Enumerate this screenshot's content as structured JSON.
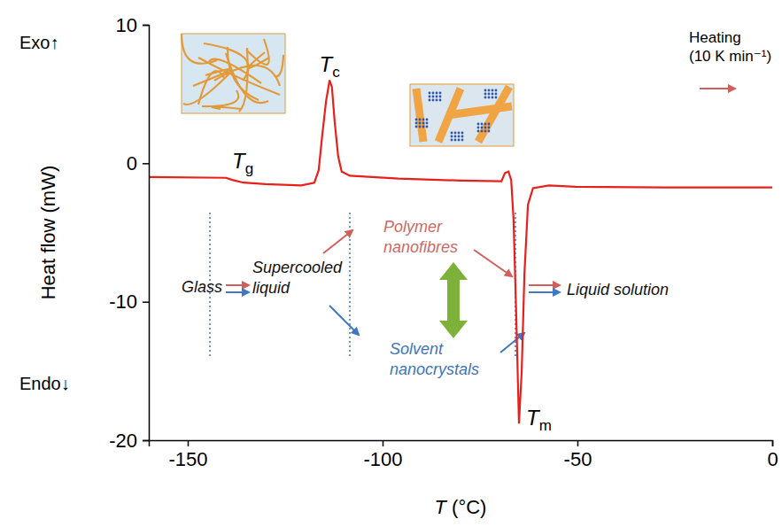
{
  "chart_data": {
    "type": "line",
    "x_label": "T (°C)",
    "y_label": "Heat flow (mW)",
    "xlim": [
      -160,
      0
    ],
    "ylim": [
      -20,
      10
    ],
    "xticks": [
      -150,
      -100,
      -50,
      0
    ],
    "yticks": [
      -20,
      -10,
      0,
      10
    ],
    "grid": false,
    "color": "#e8201c",
    "x": [
      -160,
      -140.2,
      -138.6,
      -135.7,
      -130,
      -120.9,
      -117.5,
      -116.4,
      -115.5,
      -114.5,
      -113.6,
      -113,
      -112.3,
      -111.4,
      -110.5,
      -108.4,
      -95.9,
      -80,
      -69.5,
      -68.6,
      -67.7,
      -67,
      -66.4,
      -65.7,
      -65,
      -64.3,
      -63.6,
      -62.7,
      -61.4,
      -57.3,
      -50.5,
      -27.7,
      0
    ],
    "values": [
      -1.0,
      -1.05,
      -1.2,
      -1.4,
      -1.5,
      -1.6,
      -1.4,
      -0.5,
      2,
      4.5,
      6.0,
      5.5,
      3,
      0.5,
      -0.6,
      -0.9,
      -1.1,
      -1.25,
      -1.3,
      -0.7,
      -0.6,
      -1.2,
      -4,
      -11,
      -18.8,
      -15,
      -8,
      -3,
      -1.8,
      -1.6,
      -1.7,
      -1.75,
      -1.75
    ],
    "annotations": [
      "Tg",
      "Tc",
      "Tm",
      "Exo↑",
      "Endo↓",
      "Heating (10 K min⁻¹)",
      "Glass",
      "Supercooled liquid",
      "Polymer nanofibres",
      "Solvent nanocrystals",
      "Liquid solution"
    ]
  }
}
